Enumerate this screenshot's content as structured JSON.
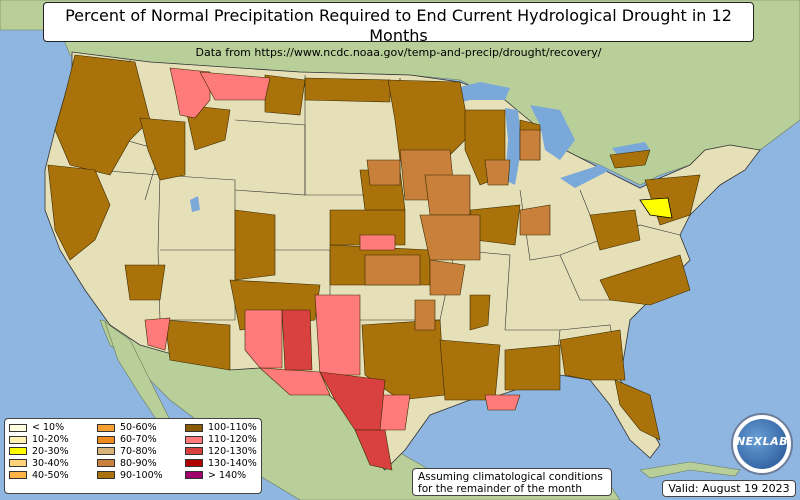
{
  "title": "Percent of Normal Precipitation Required to End Current Hydrological Drought in 12 Months",
  "subtitle": "Data from https://www.ncdc.noaa.gov/temp-and-precip/drought/recovery/",
  "legend": {
    "items": [
      {
        "label": "< 10%",
        "color": "#ffffe0"
      },
      {
        "label": "10-20%",
        "color": "#fff2b3"
      },
      {
        "label": "20-30%",
        "color": "#ffff00"
      },
      {
        "label": "30-40%",
        "color": "#ffd27a"
      },
      {
        "label": "40-50%",
        "color": "#ffb347"
      },
      {
        "label": "50-60%",
        "color": "#f5a030"
      },
      {
        "label": "60-70%",
        "color": "#f08a1e"
      },
      {
        "label": "70-80%",
        "color": "#d9b27a"
      },
      {
        "label": "80-90%",
        "color": "#c8803a"
      },
      {
        "label": "90-100%",
        "color": "#a9720a"
      },
      {
        "label": "100-110%",
        "color": "#8a5a00"
      },
      {
        "label": "110-120%",
        "color": "#ff7a7a"
      },
      {
        "label": "120-130%",
        "color": "#d94040"
      },
      {
        "label": "130-140%",
        "color": "#b00000"
      },
      {
        "label": "> 140%",
        "color": "#a0006a"
      }
    ]
  },
  "note": {
    "line1": "Assuming climatological conditions",
    "line2": "for the remainder of the month"
  },
  "valid": "Valid: August 19 2023",
  "logo": {
    "text": "NEXLAB",
    "icon": "nexlab-globe-logo"
  },
  "colors": {
    "ocean": "#8fb6e0",
    "land_us": "#e6e0b8",
    "land_foreign": "#b9cf9a",
    "lake": "#7aa9d9",
    "c100": "#a9720a",
    "c110": "#ff7a7a",
    "c120": "#d94040",
    "c80": "#c8803a",
    "c20": "#ffff00"
  }
}
